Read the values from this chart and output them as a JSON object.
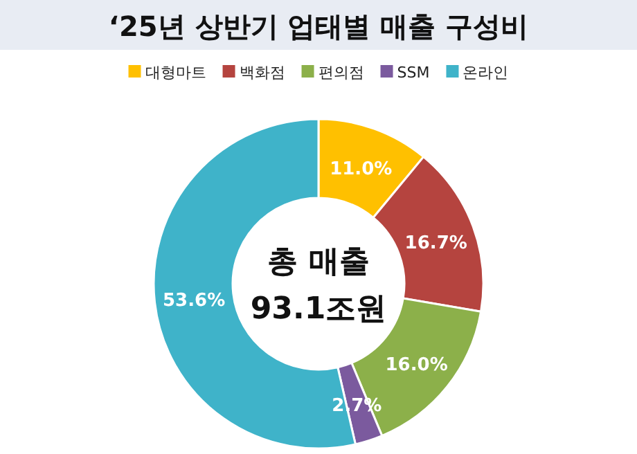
{
  "chart_data": {
    "type": "donut",
    "title": "‘25년 상반기 업태별 매출 구성비",
    "categories": [
      "대형마트",
      "백화점",
      "편의점",
      "SSM",
      "온라인"
    ],
    "values": [
      11.0,
      16.7,
      16.0,
      2.7,
      53.6
    ],
    "value_labels": [
      "11.0%",
      "16.7%",
      "16.0%",
      "2.7%",
      "53.6%"
    ],
    "colors": [
      "#ffc000",
      "#b5443f",
      "#8cb04a",
      "#7b5a9e",
      "#3fb3c9"
    ],
    "legend": "top",
    "annotations": [
      "총 매출",
      "93.1조원"
    ]
  }
}
